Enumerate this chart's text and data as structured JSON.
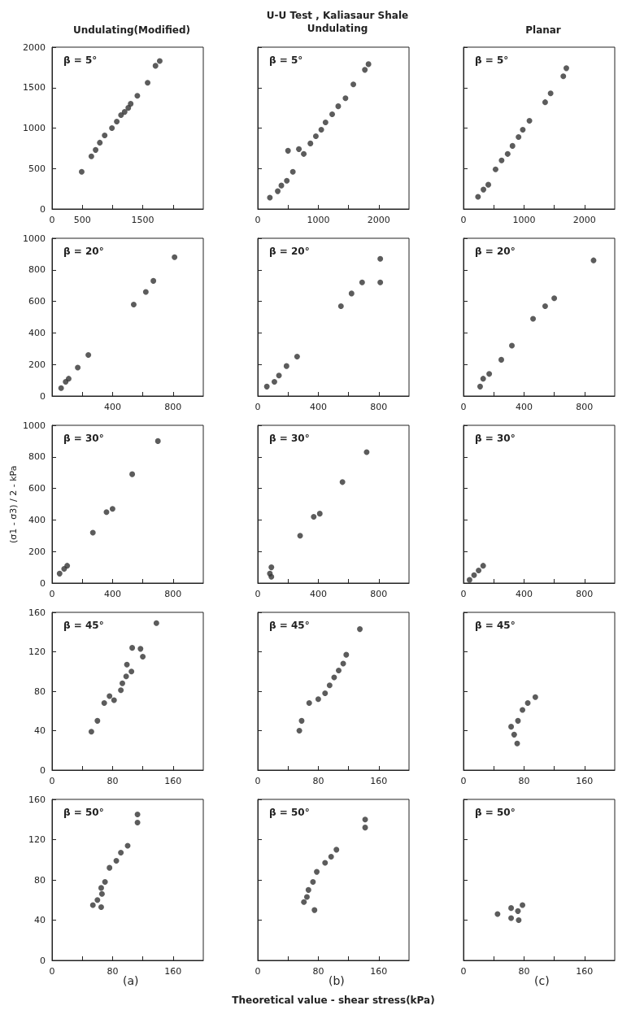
{
  "chart_data": [
    {
      "type": "scatter",
      "title": "Undulating(Modified)",
      "annotations": [
        "β = 5°"
      ],
      "x": [
        490,
        650,
        720,
        790,
        870,
        990,
        1070,
        1140,
        1200,
        1260,
        1300,
        1410,
        1580,
        1710,
        1780
      ],
      "series": [
        {
          "color": "#333333",
          "values": [
            460,
            650,
            730,
            820,
            910,
            1000,
            1080,
            1160,
            1200,
            1250,
            1300,
            1400,
            1560,
            1770,
            1830
          ]
        }
      ],
      "xlim": [
        0,
        2500
      ],
      "xticks": [
        0,
        500,
        {
          "value": 1000,
          "label": null
        },
        1500,
        {
          "value": 2000,
          "label": null
        }
      ],
      "ylim": [
        0,
        2000
      ],
      "yticks": [
        0,
        500,
        1000,
        1500,
        2000
      ],
      "marker": "circle"
    },
    {
      "type": "scatter",
      "title": "U-U Test , Kaliasaur Shale",
      "subtitle": "Undulating",
      "annotations": [
        "β = 5°"
      ],
      "x": [
        200,
        330,
        390,
        480,
        500,
        580,
        680,
        760,
        870,
        960,
        1050,
        1120,
        1230,
        1330,
        1450,
        1580,
        1770,
        1830
      ],
      "series": [
        {
          "color": "#333333",
          "values": [
            140,
            220,
            290,
            350,
            720,
            460,
            740,
            680,
            810,
            900,
            980,
            1070,
            1170,
            1270,
            1370,
            1540,
            1720,
            1790
          ]
        }
      ],
      "xlim": [
        0,
        2500
      ],
      "xticks": [
        0,
        {
          "value": 500,
          "label": null
        },
        1000,
        {
          "value": 1500,
          "label": null
        },
        2000
      ],
      "ylim": [
        0,
        2000
      ],
      "yticks": [
        0,
        500,
        1000,
        1500,
        2000
      ],
      "tick_labels": "x",
      "marker": "circle"
    },
    {
      "type": "scatter",
      "title": "Planar",
      "annotations": [
        "β = 5°"
      ],
      "x": [
        240,
        330,
        410,
        530,
        630,
        730,
        810,
        910,
        980,
        1090,
        1350,
        1440,
        1650,
        1700
      ],
      "series": [
        {
          "color": "#333333",
          "values": [
            150,
            240,
            300,
            490,
            600,
            680,
            780,
            890,
            980,
            1090,
            1320,
            1430,
            1640,
            1740
          ]
        }
      ],
      "xlim": [
        0,
        2500
      ],
      "xticks": [
        0,
        {
          "value": 500,
          "label": null
        },
        1000,
        {
          "value": 1500,
          "label": null
        },
        2000
      ],
      "ylim": [
        0,
        2000
      ],
      "yticks": [
        0,
        500,
        1000,
        1500,
        2000
      ],
      "tick_labels": "x",
      "marker": "circle"
    },
    {
      "type": "scatter",
      "annotations": [
        "β = 20°"
      ],
      "x": [
        60,
        90,
        110,
        170,
        240,
        540,
        620,
        670,
        810
      ],
      "series": [
        {
          "color": "#333333",
          "values": [
            50,
            90,
            110,
            180,
            260,
            580,
            660,
            730,
            880
          ]
        }
      ],
      "xlim": [
        0,
        1000
      ],
      "xticks": [
        {
          "value": 0,
          "label": null
        },
        {
          "value": 200,
          "label": null
        },
        400,
        {
          "value": 600,
          "label": null
        },
        800
      ],
      "ylim": [
        0,
        1000
      ],
      "yticks": [
        0,
        200,
        400,
        600,
        800,
        1000
      ],
      "marker": "circle"
    },
    {
      "type": "scatter",
      "annotations": [
        "β = 20°"
      ],
      "x": [
        60,
        110,
        140,
        190,
        260,
        550,
        620,
        690,
        810,
        810
      ],
      "series": [
        {
          "color": "#333333",
          "values": [
            60,
            90,
            130,
            190,
            250,
            570,
            650,
            720,
            720,
            870
          ]
        }
      ],
      "xlim": [
        0,
        1000
      ],
      "xticks": [
        0,
        {
          "value": 200,
          "label": null
        },
        400,
        {
          "value": 600,
          "label": null
        },
        800
      ],
      "ylim": [
        0,
        1000
      ],
      "yticks": [
        0,
        200,
        400,
        600,
        800,
        1000
      ],
      "tick_labels": "x",
      "marker": "circle"
    },
    {
      "type": "scatter",
      "annotations": [
        "β = 20°"
      ],
      "x": [
        110,
        130,
        170,
        250,
        320,
        460,
        540,
        600,
        860
      ],
      "series": [
        {
          "color": "#333333",
          "values": [
            60,
            110,
            140,
            230,
            320,
            490,
            570,
            620,
            860
          ]
        }
      ],
      "xlim": [
        0,
        1000
      ],
      "xticks": [
        0,
        {
          "value": 200,
          "label": null
        },
        400,
        {
          "value": 600,
          "label": null
        },
        800
      ],
      "ylim": [
        0,
        1000
      ],
      "yticks": [
        0,
        200,
        400,
        600,
        800,
        1000
      ],
      "tick_labels": "x",
      "marker": "circle"
    },
    {
      "type": "scatter",
      "ylabel": "(σ1 - σ3) / 2 - kPa",
      "annotations": [
        "β = 30°"
      ],
      "x": [
        50,
        80,
        100,
        270,
        360,
        400,
        530,
        700
      ],
      "series": [
        {
          "color": "#333333",
          "values": [
            60,
            90,
            110,
            320,
            450,
            470,
            690,
            900
          ]
        }
      ],
      "xlim": [
        0,
        1000
      ],
      "xticks": [
        0,
        {
          "value": 200,
          "label": null
        },
        400,
        {
          "value": 600,
          "label": null
        },
        800
      ],
      "ylim": [
        0,
        1000
      ],
      "yticks": [
        0,
        200,
        400,
        600,
        800,
        1000
      ],
      "marker": "circle"
    },
    {
      "type": "scatter",
      "annotations": [
        "β = 30°"
      ],
      "x": [
        80,
        90,
        90,
        280,
        370,
        410,
        560,
        720
      ],
      "series": [
        {
          "color": "#333333",
          "values": [
            60,
            100,
            40,
            300,
            420,
            440,
            640,
            830
          ]
        }
      ],
      "xlim": [
        0,
        1000
      ],
      "xticks": [
        0,
        {
          "value": 200,
          "label": null
        },
        400,
        {
          "value": 600,
          "label": null
        },
        800
      ],
      "ylim": [
        0,
        1000
      ],
      "yticks": [
        0,
        200,
        400,
        600,
        800,
        1000
      ],
      "tick_labels": "x",
      "marker": "circle"
    },
    {
      "type": "scatter",
      "annotations": [
        "β = 30°"
      ],
      "x": [
        40,
        70,
        100,
        130
      ],
      "series": [
        {
          "color": "#333333",
          "values": [
            20,
            50,
            80,
            110
          ]
        }
      ],
      "xlim": [
        0,
        1000
      ],
      "xticks": [
        0,
        {
          "value": 200,
          "label": null
        },
        400,
        {
          "value": 600,
          "label": null
        },
        800
      ],
      "ylim": [
        0,
        1000
      ],
      "yticks": [
        0,
        200,
        400,
        600,
        800,
        1000
      ],
      "tick_labels": "x",
      "marker": "circle"
    },
    {
      "type": "scatter",
      "annotations": [
        "β = 45°"
      ],
      "x": [
        52,
        60,
        69,
        76,
        82,
        91,
        93,
        98,
        99,
        105,
        106,
        117,
        120,
        138
      ],
      "series": [
        {
          "color": "#333333",
          "values": [
            39,
            50,
            68,
            75,
            71,
            81,
            88,
            95,
            107,
            100,
            124,
            123,
            115,
            149
          ]
        }
      ],
      "xlim": [
        0,
        200
      ],
      "xticks": [
        0,
        {
          "value": 40,
          "label": null
        },
        80,
        {
          "value": 120,
          "label": null
        },
        160
      ],
      "ylim": [
        0,
        160
      ],
      "yticks": [
        0,
        40,
        80,
        120,
        160
      ],
      "marker": "circle"
    },
    {
      "type": "scatter",
      "annotations": [
        "β = 45°"
      ],
      "x": [
        55,
        58,
        68,
        80,
        89,
        95,
        101,
        107,
        113,
        117,
        135
      ],
      "series": [
        {
          "color": "#333333",
          "values": [
            40,
            50,
            68,
            72,
            78,
            86,
            94,
            101,
            108,
            117,
            143
          ]
        }
      ],
      "xlim": [
        0,
        200
      ],
      "xticks": [
        0,
        {
          "value": 40,
          "label": null
        },
        80,
        {
          "value": 120,
          "label": null
        },
        160
      ],
      "ylim": [
        0,
        160
      ],
      "yticks": [
        0,
        40,
        80,
        120,
        160
      ],
      "tick_labels": "x",
      "marker": "circle"
    },
    {
      "type": "scatter",
      "annotations": [
        "β = 45°"
      ],
      "x": [
        63,
        67,
        71,
        72,
        78,
        85,
        95
      ],
      "series": [
        {
          "color": "#333333",
          "values": [
            44,
            36,
            27,
            50,
            61,
            68,
            74
          ]
        }
      ],
      "xlim": [
        0,
        200
      ],
      "xticks": [
        0,
        {
          "value": 40,
          "label": null
        },
        80,
        {
          "value": 120,
          "label": null
        },
        160
      ],
      "ylim": [
        0,
        160
      ],
      "yticks": [
        0,
        40,
        80,
        120,
        160
      ],
      "tick_labels": "x",
      "marker": "circle"
    },
    {
      "type": "scatter",
      "annotations": [
        "β = 50°",
        "(a)"
      ],
      "x": [
        54,
        60,
        65,
        65,
        66,
        70,
        76,
        85,
        91,
        100,
        113,
        113
      ],
      "series": [
        {
          "color": "#333333",
          "values": [
            55,
            60,
            53,
            72,
            66,
            78,
            92,
            99,
            107,
            114,
            137,
            145
          ]
        }
      ],
      "xlim": [
        0,
        200
      ],
      "xticks": [
        0,
        {
          "value": 40,
          "label": null
        },
        80,
        {
          "value": 120,
          "label": null
        },
        160
      ],
      "ylim": [
        0,
        160
      ],
      "yticks": [
        0,
        40,
        80,
        120,
        160
      ],
      "marker": "circle"
    },
    {
      "type": "scatter",
      "xlabel": "Theoretical value - shear stress(kPa)",
      "annotations": [
        "β = 50°",
        "(b)"
      ],
      "x": [
        61,
        65,
        67,
        73,
        75,
        78,
        89,
        97,
        104,
        142,
        142
      ],
      "series": [
        {
          "color": "#333333",
          "values": [
            58,
            63,
            70,
            78,
            50,
            88,
            97,
            103,
            110,
            140,
            132
          ]
        }
      ],
      "xlim": [
        0,
        200
      ],
      "xticks": [
        0,
        {
          "value": 40,
          "label": null
        },
        80,
        {
          "value": 120,
          "label": null
        },
        160
      ],
      "ylim": [
        0,
        160
      ],
      "yticks": [
        0,
        40,
        80,
        120,
        160
      ],
      "tick_labels": "x",
      "marker": "circle"
    },
    {
      "type": "scatter",
      "annotations": [
        "β = 50°",
        "(c)"
      ],
      "x": [
        45,
        63,
        63,
        72,
        73,
        78
      ],
      "series": [
        {
          "color": "#333333",
          "values": [
            46,
            52,
            42,
            49,
            40,
            55
          ]
        }
      ],
      "xlim": [
        0,
        200
      ],
      "xticks": [
        0,
        {
          "value": 40,
          "label": null
        },
        80,
        {
          "value": 120,
          "label": null
        },
        160
      ],
      "ylim": [
        0,
        160
      ],
      "yticks": [
        0,
        40,
        80,
        120,
        160
      ],
      "tick_labels": "x",
      "marker": "circle"
    }
  ]
}
